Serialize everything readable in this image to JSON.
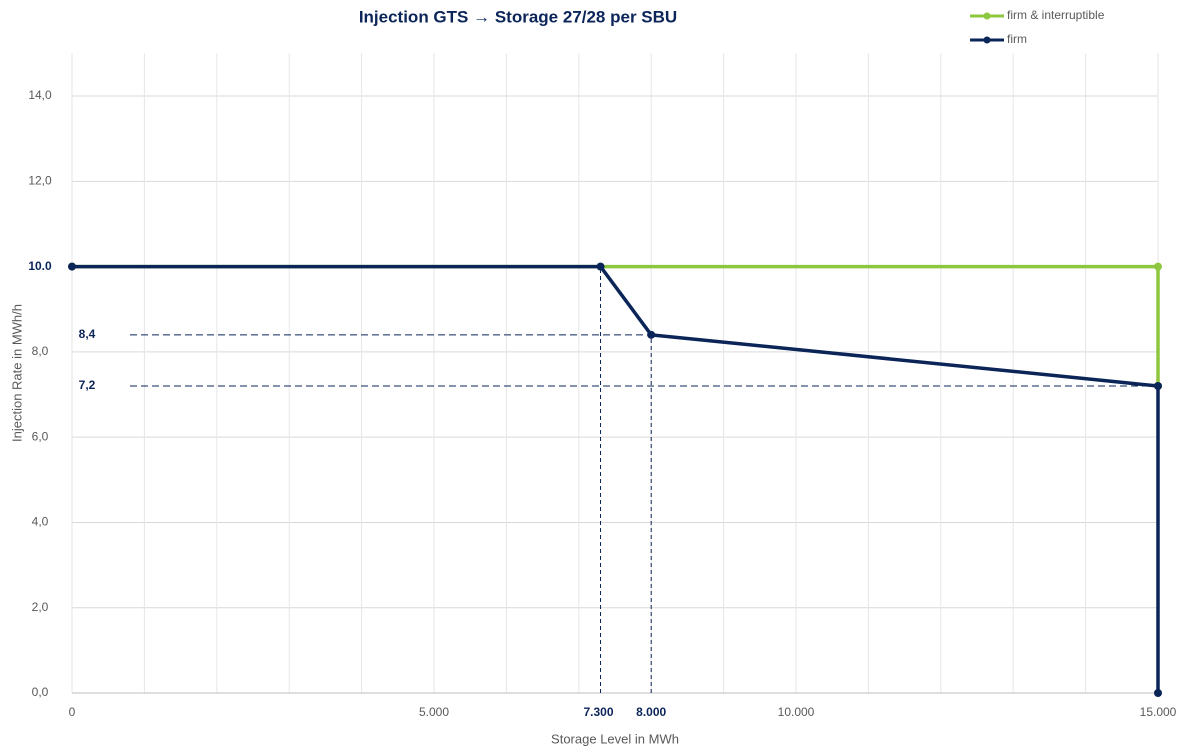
{
  "chart_data": {
    "type": "line",
    "title": "Injection GTS → Storage 27/28 per SBU",
    "x_label": "Storage Level in MWh",
    "y_label": "Injection Rate in MWh/h",
    "xlim": [
      0,
      15000
    ],
    "ylim": [
      0,
      15
    ],
    "xticks": [
      0,
      {
        "value": 1000,
        "label": null
      },
      {
        "value": 2000,
        "label": null
      },
      {
        "value": 3000,
        "label": null
      },
      {
        "value": 4000,
        "label": null
      },
      {
        "value": 5000,
        "label": "5.000"
      },
      {
        "value": 6000,
        "label": null
      },
      {
        "value": 7000,
        "label": null
      },
      {
        "value": 8000,
        "label": null
      },
      {
        "value": 9000,
        "label": null
      },
      {
        "value": 10000,
        "label": "10.000"
      },
      {
        "value": 11000,
        "label": null
      },
      {
        "value": 12000,
        "label": null
      },
      {
        "value": 13000,
        "label": null
      },
      {
        "value": 14000,
        "label": null
      },
      {
        "value": 15000,
        "label": "15.000"
      }
    ],
    "yticks": [
      {
        "value": 0,
        "label": "0,0"
      },
      {
        "value": 2,
        "label": "2,0"
      },
      {
        "value": 4,
        "label": "4,0"
      },
      {
        "value": 6,
        "label": "6,0"
      },
      {
        "value": 8,
        "label": "8,0"
      },
      {
        "value": 10,
        "label": null
      },
      {
        "value": 12,
        "label": "12,0"
      },
      {
        "value": 14,
        "label": "14,0"
      }
    ],
    "grid": true,
    "legend": "top-right",
    "x_markers": [
      {
        "value": 7300,
        "label": "7.300"
      },
      {
        "value": 8000,
        "label": "8.000"
      }
    ],
    "y_markers": [
      {
        "value": 10,
        "label": "10.0"
      },
      {
        "value": 8.4,
        "label": "8,4"
      },
      {
        "value": 7.2,
        "label": "7,2"
      }
    ],
    "series": [
      {
        "name": "firm & interruptible",
        "color": "#8dc63f",
        "x": [
          0,
          7300,
          15000,
          15000
        ],
        "values": [
          10,
          10,
          10,
          7.2
        ]
      },
      {
        "name": "firm",
        "color": "#0b2559",
        "x": [
          0,
          7300,
          8000,
          15000,
          15000
        ],
        "values": [
          10,
          10,
          8.4,
          7.2,
          0
        ]
      }
    ]
  }
}
